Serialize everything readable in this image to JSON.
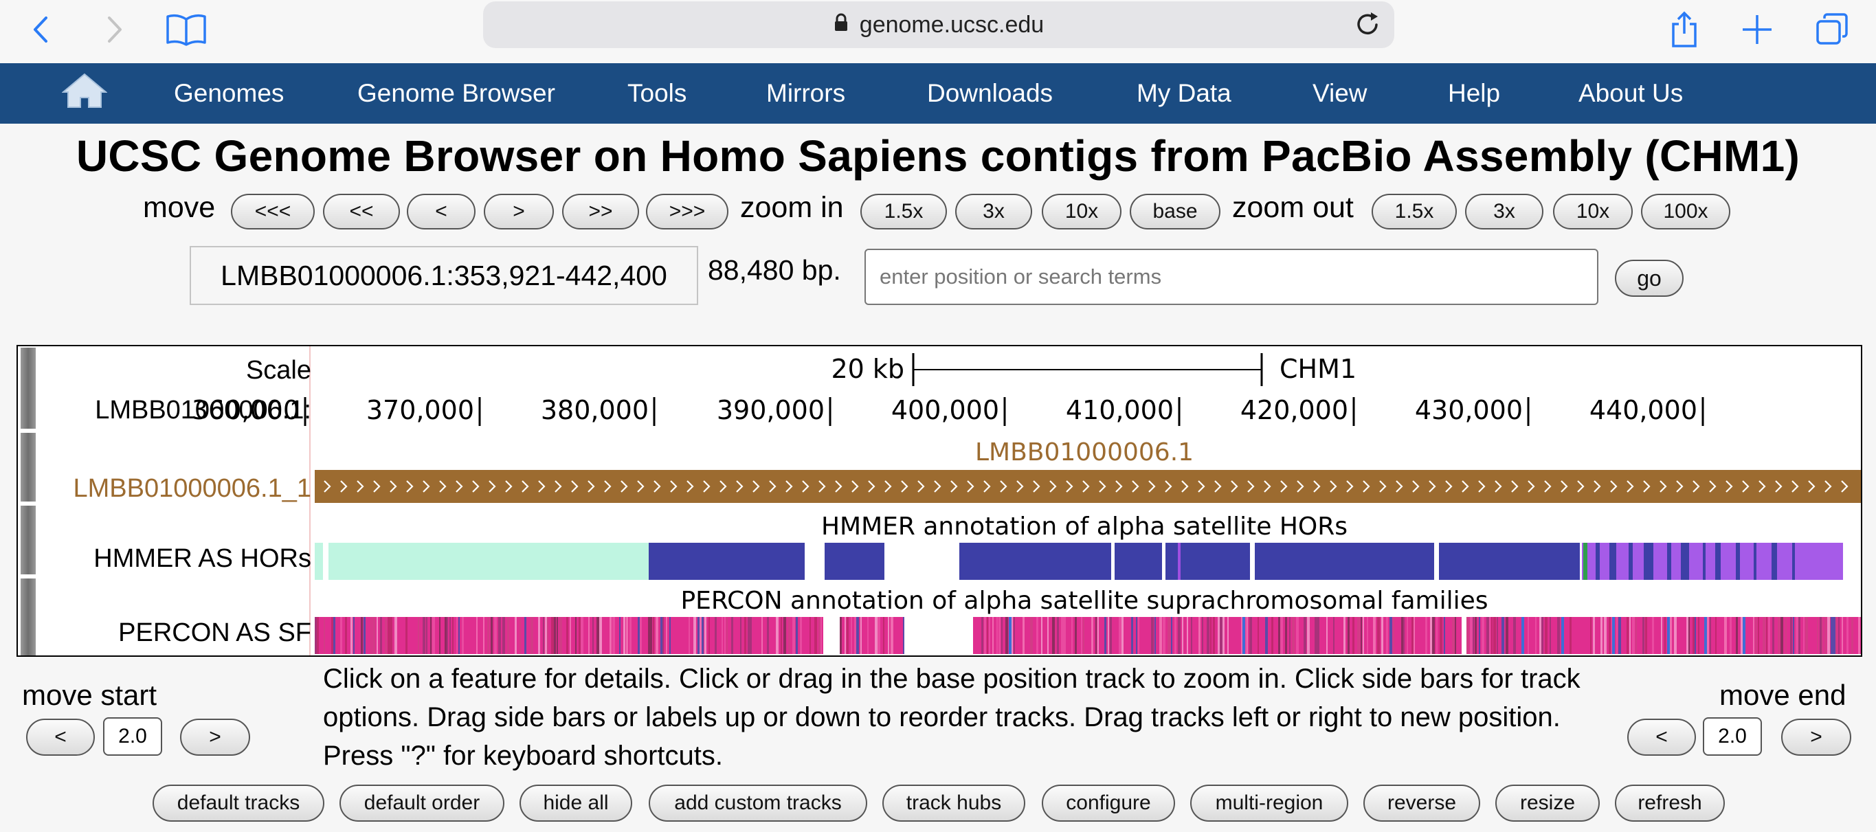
{
  "browser": {
    "url": "genome.ucsc.edu"
  },
  "nav": {
    "items": [
      "Genomes",
      "Genome Browser",
      "Tools",
      "Mirrors",
      "Downloads",
      "My Data",
      "View",
      "Help",
      "About Us"
    ]
  },
  "title": "UCSC Genome Browser on Homo Sapiens contigs from PacBio Assembly (CHM1)",
  "move": {
    "label": "move",
    "buttons": [
      "<<<",
      "<<",
      "<",
      ">",
      ">>",
      ">>>"
    ]
  },
  "zoom_in": {
    "label": "zoom in",
    "buttons": [
      "1.5x",
      "3x",
      "10x",
      "base"
    ]
  },
  "zoom_out": {
    "label": "zoom out",
    "buttons": [
      "1.5x",
      "3x",
      "10x",
      "100x"
    ]
  },
  "position": {
    "value": "LMBB01000006.1:353,921-442,400",
    "size_text": "88,480 bp.",
    "search_placeholder": "enter position or search terms",
    "go_label": "go"
  },
  "tracks": {
    "scale_label": "Scale",
    "scale_bar_text": "20 kb",
    "assembly": "CHM1",
    "chrom_label": "LMBB01000006.1:",
    "ruler_ticks": [
      "360,000",
      "370,000",
      "380,000",
      "390,000",
      "400,000",
      "410,000",
      "420,000",
      "430,000",
      "440,000"
    ],
    "contig_track_label": "LMBB01000006.1_1",
    "contig_feature_name": "LMBB01000006.1",
    "contig_color": "#9c6b30",
    "hmmer_label": "HMMER AS HORs",
    "hmmer_title": "HMMER annotation of alpha satellite HORs",
    "percon_label": "PERCON AS SF",
    "percon_title": "PERCON annotation of alpha satellite suprachromosomal families"
  },
  "bottom": {
    "move_start_label": "move start",
    "move_end_label": "move end",
    "left_btn": "<",
    "right_btn": ">",
    "start_value": "2.0",
    "end_value": "2.0",
    "help_text": "Click on a feature for details. Click or drag in the base position track to zoom in. Click side bars for track options. Drag side bars or labels up or down to reorder tracks. Drag tracks left or right to new position. Press \"?\" for keyboard shortcuts.",
    "buttons": [
      "default tracks",
      "default order",
      "hide all",
      "add custom tracks",
      "track hubs",
      "configure",
      "multi-region",
      "reverse",
      "resize",
      "refresh"
    ]
  }
}
